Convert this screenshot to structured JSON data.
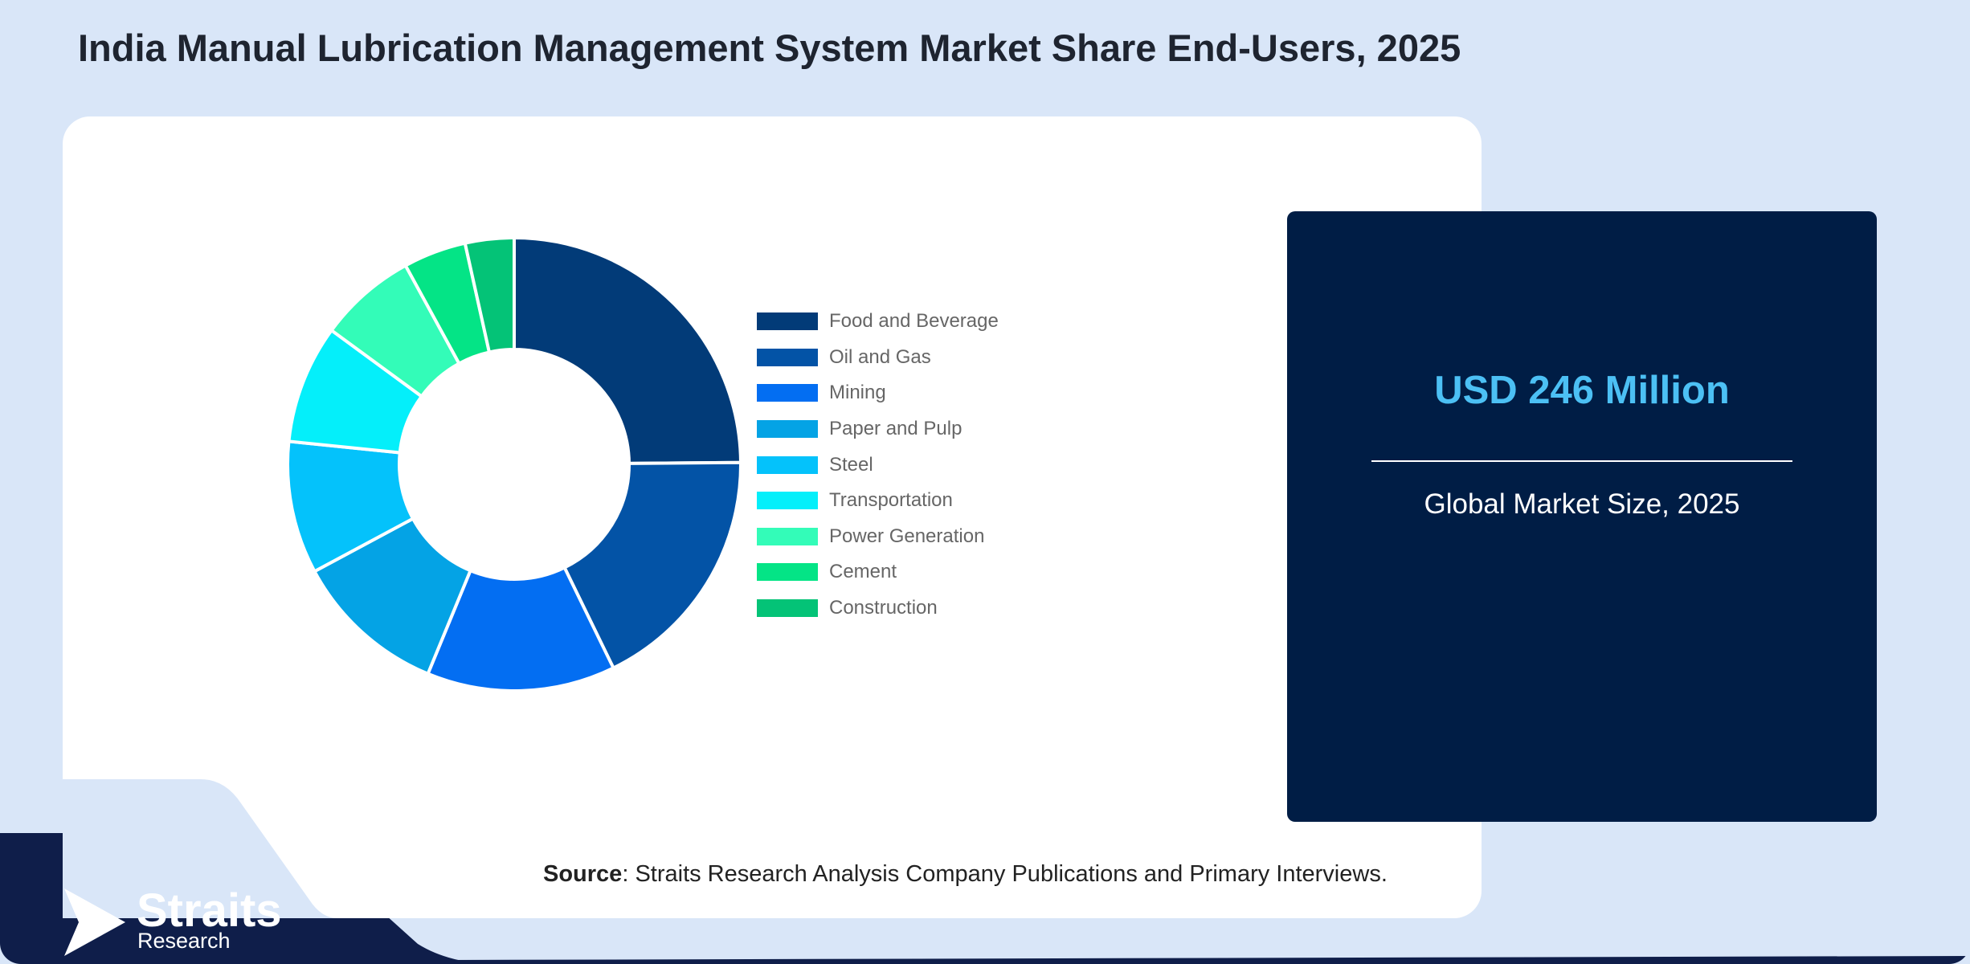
{
  "title": "India Manual Lubrication Management System Market Share End-Users, 2025",
  "chart_data": {
    "type": "pie",
    "variant": "donut",
    "categories": [
      "Food and Beverage",
      "Oil and Gas",
      "Mining",
      "Paper and Pulp",
      "Steel",
      "Transportation",
      "Power Generation",
      "Cement",
      "Construction"
    ],
    "values": [
      25.0,
      18.0,
      13.5,
      11.0,
      9.5,
      8.5,
      7.0,
      4.5,
      3.5
    ],
    "colors": [
      "#023b78",
      "#0353a6",
      "#036ef2",
      "#04a3e5",
      "#04c2fb",
      "#04effa",
      "#33fcb8",
      "#04e486",
      "#04c377"
    ],
    "legend_position": "right"
  },
  "market": {
    "value": "USD 246 Million",
    "label": "Global Market Size, 2025"
  },
  "source": {
    "label": "Source",
    "text": ": Straits Research Analysis Company Publications and Primary Interviews."
  },
  "brand": {
    "name": "Straits",
    "sub": "Research"
  },
  "colors": {
    "background": "#d9e6f8",
    "panel": "#001d45",
    "accent": "#4cc0f4",
    "band": "#0f1e4a"
  }
}
